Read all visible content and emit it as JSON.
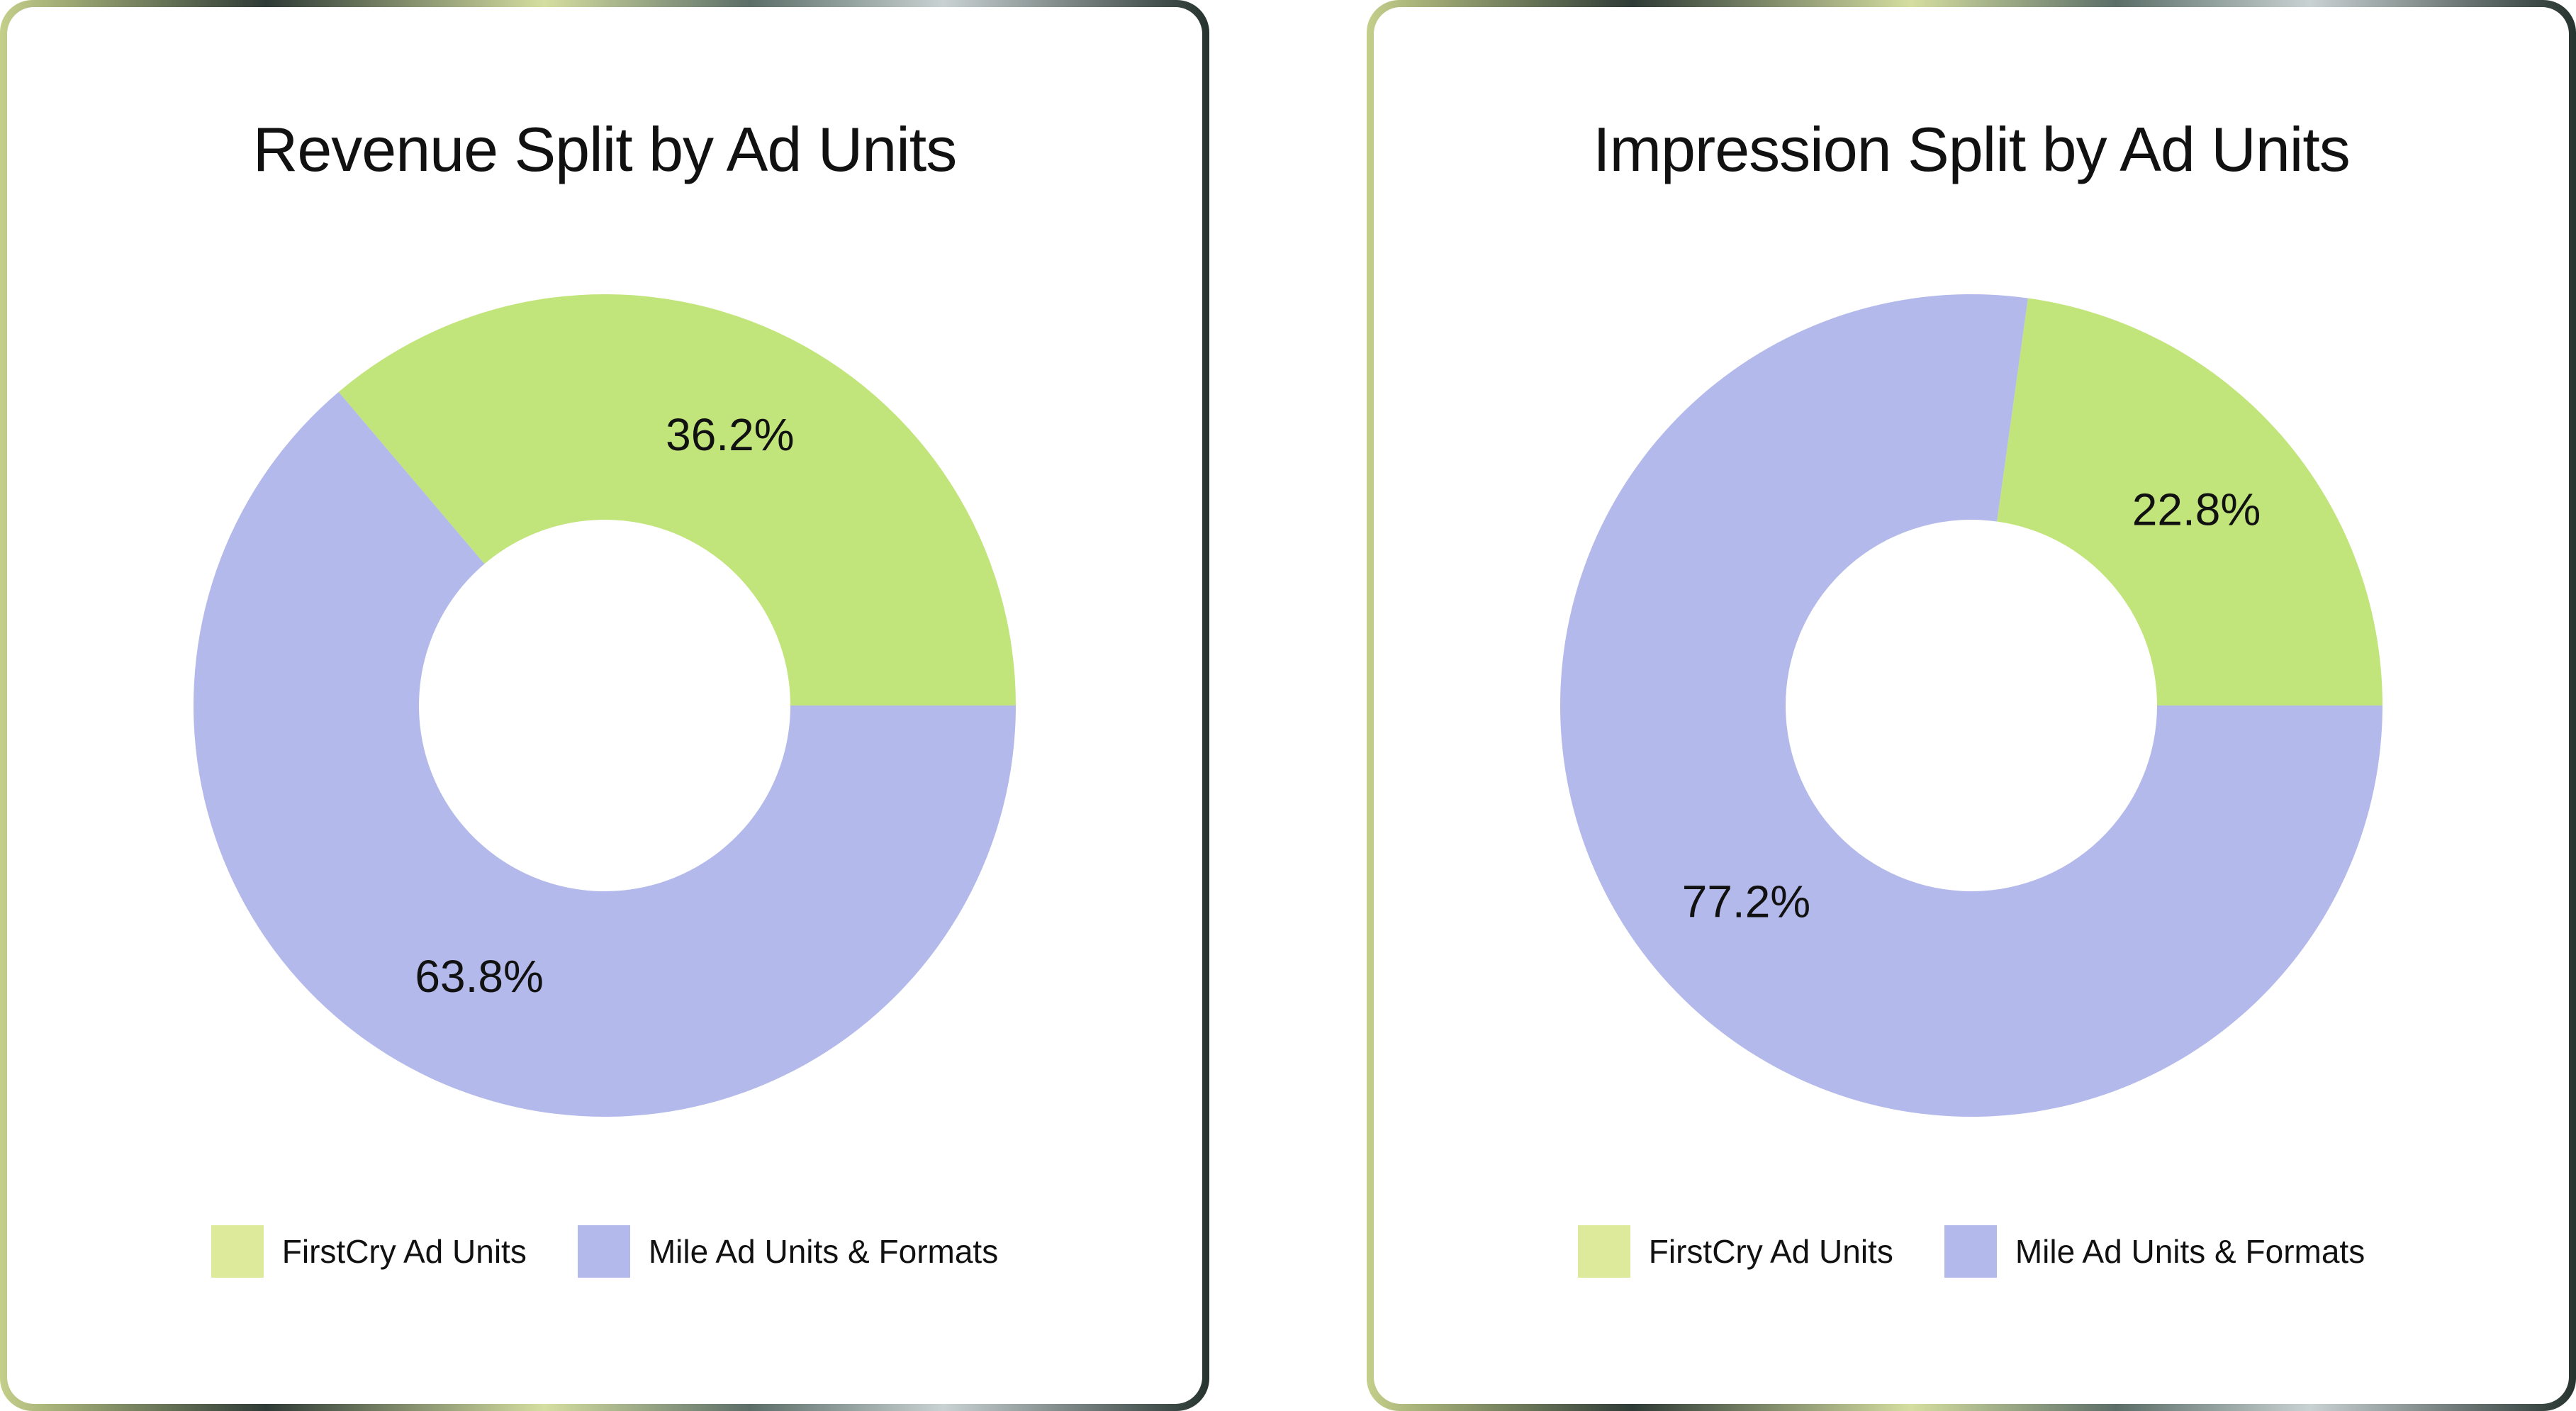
{
  "colors": {
    "firstcry_legend": "#dde99b",
    "firstcry_slice": "#c1e47b",
    "mile": "#b3b9ea",
    "hole": "#ffffff"
  },
  "chart_data": [
    {
      "type": "pie",
      "variant": "donut",
      "title": "Revenue Split by Ad Units",
      "categories": [
        "FirstCry Ad Units",
        "Mile Ad Units & Formats"
      ],
      "values": [
        36.2,
        63.8
      ],
      "labels": [
        "36.2%",
        "63.8%"
      ],
      "legend": {
        "position": "bottom",
        "entries": [
          "FirstCry Ad Units",
          "Mile Ad Units & Formats"
        ]
      }
    },
    {
      "type": "pie",
      "variant": "donut",
      "title": "Impression Split by Ad Units",
      "categories": [
        "FirstCry Ad Units",
        "Mile Ad Units & Formats"
      ],
      "values": [
        22.8,
        77.2
      ],
      "labels": [
        "22.8%",
        "77.2%"
      ],
      "legend": {
        "position": "bottom",
        "entries": [
          "FirstCry Ad Units",
          "Mile Ad Units & Formats"
        ]
      }
    }
  ]
}
